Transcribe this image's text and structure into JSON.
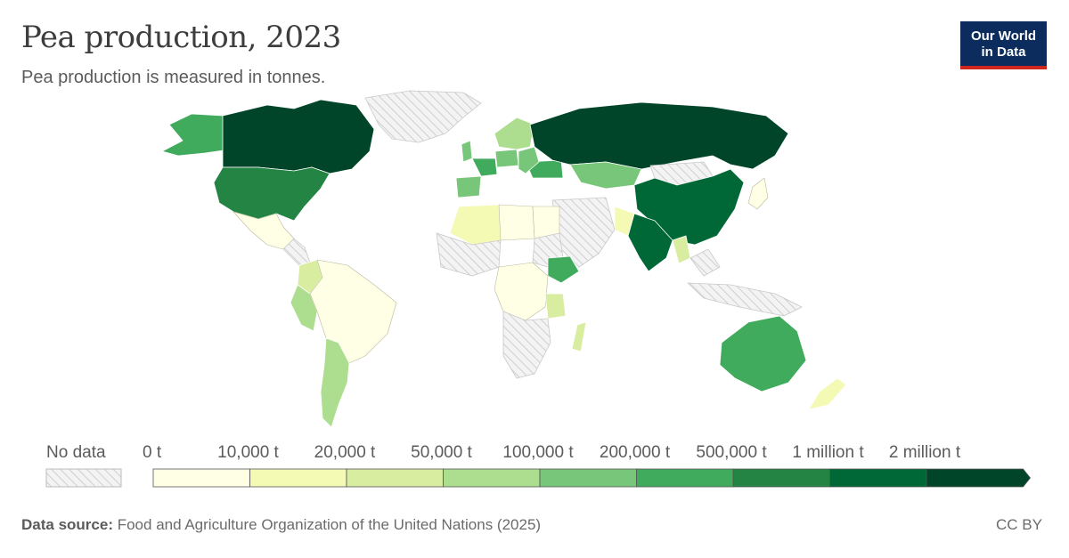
{
  "header": {
    "title": "Pea production, 2023",
    "subtitle": "Pea production is measured in tonnes."
  },
  "logo": {
    "line1": "Our World",
    "line2": "in Data"
  },
  "legend": {
    "no_data_label": "No data",
    "bins": [
      {
        "label": "0 t",
        "color": "#ffffe6"
      },
      {
        "label": "10,000 t",
        "color": "#f4f9b4"
      },
      {
        "label": "20,000 t",
        "color": "#d8eda0"
      },
      {
        "label": "50,000 t",
        "color": "#addd8e"
      },
      {
        "label": "100,000 t",
        "color": "#78c679"
      },
      {
        "label": "200,000 t",
        "color": "#41ab5d"
      },
      {
        "label": "500,000 t",
        "color": "#238443"
      },
      {
        "label": "1 million t",
        "color": "#006837"
      },
      {
        "label": "2 million t",
        "color": "#004529"
      }
    ]
  },
  "footer": {
    "source_label": "Data source:",
    "source_text": "Food and Agriculture Organization of the United Nations (2025)",
    "license": "CC BY"
  },
  "map_data": {
    "metric": "Pea production",
    "year": "2023",
    "unit": "tonnes",
    "bin_edges": [
      "0 t",
      "10,000 t",
      "20,000 t",
      "50,000 t",
      "100,000 t",
      "200,000 t",
      "500,000 t",
      "1 million t",
      "2 million t"
    ],
    "regions": [
      {
        "name": "Canada",
        "bin": 8
      },
      {
        "name": "Russia",
        "bin": 8
      },
      {
        "name": "China",
        "bin": 7
      },
      {
        "name": "India",
        "bin": 7
      },
      {
        "name": "United States",
        "bin": 6
      },
      {
        "name": "Alaska",
        "bin": 5
      },
      {
        "name": "Australia",
        "bin": 5
      },
      {
        "name": "Ethiopia",
        "bin": 5
      },
      {
        "name": "France",
        "bin": 5
      },
      {
        "name": "Ukraine",
        "bin": 5
      },
      {
        "name": "Kazakhstan",
        "bin": 4
      },
      {
        "name": "Spain",
        "bin": 4
      },
      {
        "name": "Germany",
        "bin": 4
      },
      {
        "name": "United Kingdom",
        "bin": 4
      },
      {
        "name": "Argentina",
        "bin": 3
      },
      {
        "name": "Peru",
        "bin": 3
      },
      {
        "name": "Colombia",
        "bin": 2
      },
      {
        "name": "Tanzania",
        "bin": 2
      },
      {
        "name": "Madagascar",
        "bin": 2
      },
      {
        "name": "Myanmar",
        "bin": 2
      },
      {
        "name": "Pakistan",
        "bin": 1
      },
      {
        "name": "Algeria",
        "bin": 1
      },
      {
        "name": "New Zealand",
        "bin": 1
      },
      {
        "name": "Brazil",
        "bin": 0
      },
      {
        "name": "Mexico",
        "bin": 0
      },
      {
        "name": "Libya",
        "bin": 0
      },
      {
        "name": "Egypt",
        "bin": 0
      },
      {
        "name": "DR Congo",
        "bin": 0
      },
      {
        "name": "Greenland",
        "bin": null
      },
      {
        "name": "Mongolia",
        "bin": null
      },
      {
        "name": "Saudi Arabia",
        "bin": null
      },
      {
        "name": "Sudan",
        "bin": null
      },
      {
        "name": "Indonesia",
        "bin": null
      },
      {
        "name": "South Africa",
        "bin": null
      }
    ]
  }
}
